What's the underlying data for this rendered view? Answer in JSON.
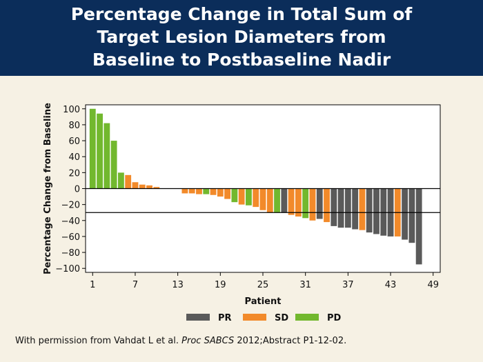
{
  "header": {
    "title_lines": [
      "Percentage Change in Total Sum of",
      "Target Lesion Diameters from",
      "Baseline to Postbaseline Nadir"
    ]
  },
  "chart_data": {
    "type": "bar",
    "xlabel": "Patient",
    "ylabel": "Percentage Change from Baseline",
    "xlim": [
      0,
      50
    ],
    "ylim": [
      -105,
      105
    ],
    "xticks": [
      1,
      7,
      13,
      19,
      25,
      31,
      37,
      43,
      49
    ],
    "yticks": [
      100,
      80,
      60,
      40,
      20,
      0,
      -20,
      -40,
      -60,
      -80,
      -100
    ],
    "reference_lines": [
      0,
      -30
    ],
    "legend_position": "bottom-center",
    "legend": [
      {
        "key": "PR",
        "label": "PR",
        "color": "#5a5a5a"
      },
      {
        "key": "SD",
        "label": "SD",
        "color": "#f28a2a"
      },
      {
        "key": "PD",
        "label": "PD",
        "color": "#72b82e"
      }
    ],
    "bars": [
      {
        "patient": 1,
        "value": 100,
        "response": "PD"
      },
      {
        "patient": 2,
        "value": 94,
        "response": "PD"
      },
      {
        "patient": 3,
        "value": 82,
        "response": "PD"
      },
      {
        "patient": 4,
        "value": 60,
        "response": "PD"
      },
      {
        "patient": 5,
        "value": 20,
        "response": "PD"
      },
      {
        "patient": 6,
        "value": 17,
        "response": "SD"
      },
      {
        "patient": 7,
        "value": 8,
        "response": "SD"
      },
      {
        "patient": 8,
        "value": 5,
        "response": "SD"
      },
      {
        "patient": 9,
        "value": 4,
        "response": "SD"
      },
      {
        "patient": 10,
        "value": 2,
        "response": "SD"
      },
      {
        "patient": 14,
        "value": -6,
        "response": "SD"
      },
      {
        "patient": 15,
        "value": -6,
        "response": "SD"
      },
      {
        "patient": 16,
        "value": -7,
        "response": "SD"
      },
      {
        "patient": 17,
        "value": -7,
        "response": "PD"
      },
      {
        "patient": 18,
        "value": -8,
        "response": "SD"
      },
      {
        "patient": 19,
        "value": -10,
        "response": "SD"
      },
      {
        "patient": 20,
        "value": -13,
        "response": "SD"
      },
      {
        "patient": 21,
        "value": -17,
        "response": "PD"
      },
      {
        "patient": 22,
        "value": -20,
        "response": "SD"
      },
      {
        "patient": 23,
        "value": -21,
        "response": "PD"
      },
      {
        "patient": 24,
        "value": -23,
        "response": "SD"
      },
      {
        "patient": 25,
        "value": -27,
        "response": "SD"
      },
      {
        "patient": 26,
        "value": -30,
        "response": "SD"
      },
      {
        "patient": 27,
        "value": -30,
        "response": "PD"
      },
      {
        "patient": 28,
        "value": -30,
        "response": "PR"
      },
      {
        "patient": 29,
        "value": -33,
        "response": "SD"
      },
      {
        "patient": 30,
        "value": -35,
        "response": "SD"
      },
      {
        "patient": 31,
        "value": -37,
        "response": "PD"
      },
      {
        "patient": 32,
        "value": -40,
        "response": "SD"
      },
      {
        "patient": 33,
        "value": -38,
        "response": "PR"
      },
      {
        "patient": 34,
        "value": -42,
        "response": "SD"
      },
      {
        "patient": 35,
        "value": -47,
        "response": "PR"
      },
      {
        "patient": 36,
        "value": -49,
        "response": "PR"
      },
      {
        "patient": 37,
        "value": -49,
        "response": "PR"
      },
      {
        "patient": 38,
        "value": -51,
        "response": "PR"
      },
      {
        "patient": 39,
        "value": -52,
        "response": "SD"
      },
      {
        "patient": 40,
        "value": -55,
        "response": "PR"
      },
      {
        "patient": 41,
        "value": -57,
        "response": "PR"
      },
      {
        "patient": 42,
        "value": -59,
        "response": "PR"
      },
      {
        "patient": 43,
        "value": -60,
        "response": "PR"
      },
      {
        "patient": 44,
        "value": -60,
        "response": "SD"
      },
      {
        "patient": 45,
        "value": -64,
        "response": "PR"
      },
      {
        "patient": 46,
        "value": -68,
        "response": "PR"
      },
      {
        "patient": 47,
        "value": -95,
        "response": "PR"
      }
    ]
  },
  "caption": {
    "prefix": "With permission from Vahdat L et al. ",
    "journal": "Proc SABCS",
    "suffix": " 2012;Abstract P1-12-02."
  }
}
